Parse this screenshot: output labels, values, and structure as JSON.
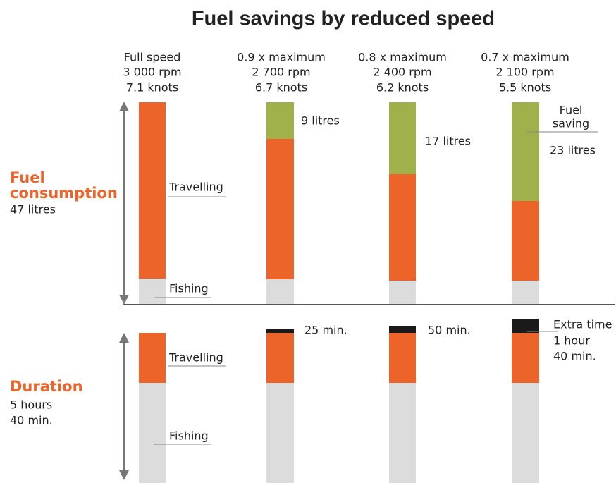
{
  "title": "Fuel savings by reduced speed",
  "columns": [
    {
      "header": [
        "Full speed",
        "3 000 rpm",
        "7.1 knots"
      ]
    },
    {
      "header": [
        "0.9 x maximum",
        "2 700 rpm",
        "6.7 knots"
      ],
      "saving": "9 litres",
      "extra": "25 min."
    },
    {
      "header": [
        "0.8 x maximum",
        "2 400 rpm",
        "6.2 knots"
      ],
      "saving": "17 litres",
      "extra": "50 min."
    },
    {
      "header": [
        "0.7 x maximum",
        "2 100 rpm",
        "5.5 knots"
      ],
      "saving_title": [
        "Fuel",
        "saving"
      ],
      "saving": "23 litres",
      "extra_title": "Extra time",
      "extra": [
        "1 hour",
        "40 min."
      ]
    }
  ],
  "fuel": {
    "title": [
      "Fuel",
      "consumption"
    ],
    "total": "47 litres",
    "travelling": "Travelling",
    "fishing": "Fishing"
  },
  "duration": {
    "title": "Duration",
    "total": [
      "5 hours",
      "40 min."
    ],
    "travelling": "Travelling",
    "fishing": "Fishing"
  }
}
